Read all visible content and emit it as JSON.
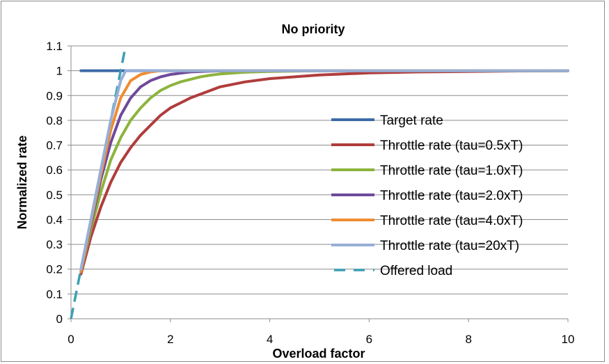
{
  "chart_data": {
    "type": "line",
    "title": "No priority",
    "xlabel": "Overload factor",
    "ylabel": "Normalized rate",
    "xlim": [
      0,
      10
    ],
    "ylim": [
      0,
      1.1
    ],
    "x_ticks": [
      "0",
      "2",
      "4",
      "6",
      "8",
      "10"
    ],
    "y_ticks": [
      "0",
      "0.1",
      "0.2",
      "0.3",
      "0.4",
      "0.5",
      "0.6",
      "0.7",
      "0.8",
      "0.9",
      "1",
      "1.1"
    ],
    "grid": "horizontal",
    "legend_position": "right",
    "series": [
      {
        "name": "Target rate",
        "color": "#3c6aa6",
        "dash": "solid",
        "x": [
          0.2,
          10
        ],
        "y": [
          1.0,
          1.0
        ]
      },
      {
        "name": "Throttle rate (tau=0.5xT)",
        "color": "#b03c3c",
        "dash": "solid",
        "x": [
          0.2,
          0.4,
          0.6,
          0.8,
          1.0,
          1.2,
          1.4,
          1.6,
          1.8,
          2.0,
          2.2,
          2.4,
          2.6,
          2.8,
          3.0,
          3.5,
          4.0,
          5.0,
          6.0,
          7.0,
          8.0,
          9.0,
          10.0
        ],
        "y": [
          0.18,
          0.33,
          0.45,
          0.55,
          0.63,
          0.69,
          0.74,
          0.78,
          0.82,
          0.85,
          0.87,
          0.89,
          0.905,
          0.92,
          0.935,
          0.955,
          0.968,
          0.983,
          0.991,
          0.995,
          0.997,
          0.999,
          1.0
        ]
      },
      {
        "name": "Throttle rate (tau=1.0xT)",
        "color": "#8cb43c",
        "dash": "solid",
        "x": [
          0.2,
          0.4,
          0.6,
          0.8,
          1.0,
          1.2,
          1.4,
          1.6,
          1.8,
          2.0,
          2.2,
          2.4,
          2.6,
          2.8,
          3.0,
          3.5,
          4.0,
          5.0,
          6.0,
          10.0
        ],
        "y": [
          0.19,
          0.36,
          0.51,
          0.64,
          0.73,
          0.8,
          0.85,
          0.89,
          0.92,
          0.94,
          0.955,
          0.965,
          0.975,
          0.982,
          0.987,
          0.994,
          0.997,
          1.0,
          1.0,
          1.0
        ]
      },
      {
        "name": "Throttle rate (tau=2.0xT)",
        "color": "#6e4a9a",
        "dash": "solid",
        "x": [
          0.2,
          0.4,
          0.6,
          0.8,
          1.0,
          1.2,
          1.4,
          1.6,
          1.8,
          2.0,
          2.2,
          2.4,
          2.8,
          3.2,
          4.0,
          10.0
        ],
        "y": [
          0.19,
          0.38,
          0.56,
          0.71,
          0.82,
          0.89,
          0.935,
          0.96,
          0.975,
          0.985,
          0.99,
          0.995,
          0.998,
          1.0,
          1.0,
          1.0
        ]
      },
      {
        "name": "Throttle rate (tau=4.0xT)",
        "color": "#f08c32",
        "dash": "solid",
        "x": [
          0.2,
          0.4,
          0.6,
          0.8,
          1.0,
          1.2,
          1.4,
          1.6,
          1.8,
          2.0,
          2.4,
          10.0
        ],
        "y": [
          0.19,
          0.39,
          0.58,
          0.76,
          0.89,
          0.96,
          0.985,
          0.995,
          1.0,
          1.0,
          1.0,
          1.0
        ]
      },
      {
        "name": "Throttle rate (tau=20xT)",
        "color": "#96afd7",
        "dash": "solid",
        "x": [
          0.2,
          0.4,
          0.6,
          0.8,
          1.0,
          1.1,
          1.2,
          10.0
        ],
        "y": [
          0.2,
          0.4,
          0.6,
          0.8,
          0.96,
          1.0,
          1.0,
          1.0
        ]
      },
      {
        "name": "Offered load",
        "color": "#3aa0b4",
        "dash": "dashed",
        "x": [
          0,
          1.1
        ],
        "y": [
          0,
          1.1
        ]
      }
    ]
  }
}
